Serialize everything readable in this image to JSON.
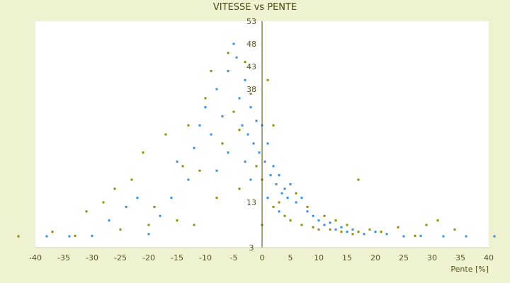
{
  "chart_data": {
    "type": "scatter",
    "title": "VITESSE vs PENTE",
    "xlabel": "Pente [%]",
    "ylabel": "",
    "xlim": [
      -40,
      40
    ],
    "ylim": [
      3,
      53
    ],
    "x_ticks": [
      -40,
      -35,
      -30,
      -25,
      -20,
      -15,
      -10,
      -5,
      0,
      5,
      10,
      15,
      20,
      25,
      30,
      35,
      40
    ],
    "y_ticks": [
      3,
      8,
      13,
      18,
      23,
      28,
      33,
      38,
      43,
      48,
      53
    ],
    "y_tick_labels_shown": [
      3,
      13,
      38,
      43,
      48,
      53
    ],
    "grid": "horizontal alternating bands",
    "colors": {
      "series_a": "#3a8fd8",
      "series_b": "#8c8c10",
      "plot_bg": "#ffffff",
      "band": "#efefef",
      "axis": "#4a4a10"
    },
    "series": [
      {
        "color": "#3a8fd8",
        "points": [
          [
            -38,
            5.5
          ],
          [
            -34,
            5.5
          ],
          [
            -30,
            5.6
          ],
          [
            -27,
            9
          ],
          [
            -24,
            12
          ],
          [
            -22,
            14
          ],
          [
            -20,
            6
          ],
          [
            -18,
            10
          ],
          [
            -16,
            14
          ],
          [
            -15,
            22
          ],
          [
            -13,
            18
          ],
          [
            -12,
            25
          ],
          [
            -11,
            30
          ],
          [
            -10,
            34
          ],
          [
            -9,
            28
          ],
          [
            -8,
            38
          ],
          [
            -7,
            32
          ],
          [
            -6,
            42
          ],
          [
            -5,
            48
          ],
          [
            -4.5,
            45
          ],
          [
            -4,
            36
          ],
          [
            -3.5,
            30
          ],
          [
            -3,
            40
          ],
          [
            -2.5,
            28
          ],
          [
            -2,
            34
          ],
          [
            -1.5,
            26
          ],
          [
            -1,
            31
          ],
          [
            -0.5,
            24
          ],
          [
            0,
            30
          ],
          [
            0.5,
            22
          ],
          [
            1,
            26
          ],
          [
            1.5,
            19
          ],
          [
            2,
            21
          ],
          [
            2.5,
            17
          ],
          [
            3,
            19
          ],
          [
            3.5,
            15
          ],
          [
            4,
            16
          ],
          [
            4.5,
            14
          ],
          [
            5,
            17
          ],
          [
            6,
            13
          ],
          [
            7,
            14
          ],
          [
            8,
            11
          ],
          [
            9,
            10
          ],
          [
            10,
            9
          ],
          [
            11,
            8
          ],
          [
            12,
            8.5
          ],
          [
            13,
            7
          ],
          [
            14,
            7.5
          ],
          [
            15,
            6.5
          ],
          [
            16,
            7
          ],
          [
            18,
            6
          ],
          [
            20,
            6.5
          ],
          [
            22,
            6
          ],
          [
            25,
            5.5
          ],
          [
            28,
            5.6
          ],
          [
            32,
            5.5
          ],
          [
            36,
            5.5
          ],
          [
            41,
            5.5
          ],
          [
            -6,
            24
          ],
          [
            -8,
            20
          ],
          [
            -3,
            22
          ],
          [
            -2,
            18
          ],
          [
            1,
            14
          ],
          [
            3,
            11
          ]
        ]
      },
      {
        "color": "#8c8c10",
        "points": [
          [
            -43,
            5.5
          ],
          [
            -37,
            6.5
          ],
          [
            -31,
            11
          ],
          [
            -28,
            13
          ],
          [
            -26,
            16
          ],
          [
            -23,
            18
          ],
          [
            -21,
            24
          ],
          [
            -19,
            12
          ],
          [
            -17,
            28
          ],
          [
            -14,
            21
          ],
          [
            -13,
            30
          ],
          [
            -11,
            20
          ],
          [
            -10,
            36
          ],
          [
            -9,
            42
          ],
          [
            -7,
            26
          ],
          [
            -6,
            46
          ],
          [
            -5,
            33
          ],
          [
            -4,
            29
          ],
          [
            -3,
            44
          ],
          [
            -2,
            37
          ],
          [
            -1,
            21
          ],
          [
            0,
            18
          ],
          [
            1,
            40
          ],
          [
            2,
            12
          ],
          [
            3,
            13
          ],
          [
            4,
            10
          ],
          [
            5,
            9
          ],
          [
            6,
            15
          ],
          [
            7,
            8
          ],
          [
            8,
            12
          ],
          [
            9,
            7.5
          ],
          [
            10,
            7
          ],
          [
            11,
            10
          ],
          [
            12,
            7
          ],
          [
            13,
            9
          ],
          [
            14,
            6.5
          ],
          [
            15,
            8
          ],
          [
            16,
            6
          ],
          [
            17,
            6.5
          ],
          [
            19,
            7
          ],
          [
            21,
            6.5
          ],
          [
            24,
            7.5
          ],
          [
            27,
            5.6
          ],
          [
            29,
            8
          ],
          [
            31,
            9
          ],
          [
            34,
            7
          ],
          [
            -15,
            9
          ],
          [
            -12,
            8
          ],
          [
            -20,
            8
          ],
          [
            -25,
            7
          ],
          [
            -33,
            5.6
          ],
          [
            -8,
            14
          ],
          [
            -4,
            16
          ],
          [
            0,
            8
          ],
          [
            2,
            30
          ],
          [
            17,
            18
          ]
        ]
      }
    ]
  }
}
